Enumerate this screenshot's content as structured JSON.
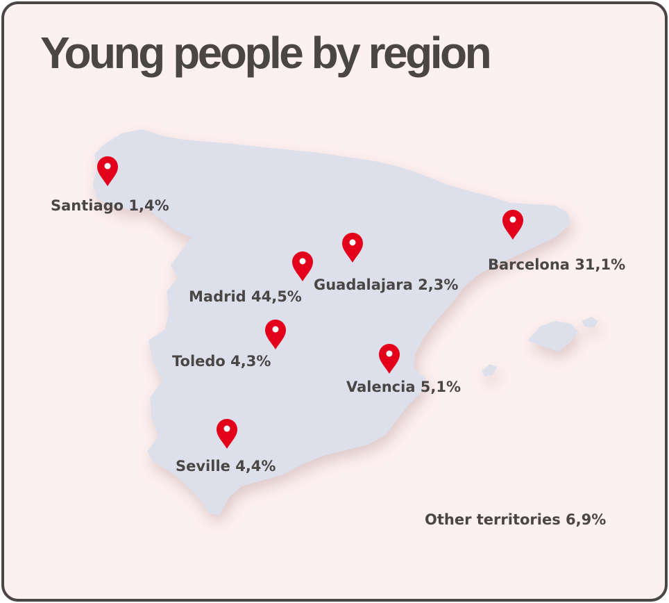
{
  "title": "Young people by region",
  "regions": [
    {
      "label": "Santiago 1,4%"
    },
    {
      "label": "Barcelona 31,1%"
    },
    {
      "label": "Guadalajara 2,3%"
    },
    {
      "label": "Madrid 44,5%"
    },
    {
      "label": "Toledo 4,3%"
    },
    {
      "label": "Valencia 5,1%"
    },
    {
      "label": "Seville 4,4%"
    },
    {
      "label": "Other territories 6,9%"
    }
  ]
}
